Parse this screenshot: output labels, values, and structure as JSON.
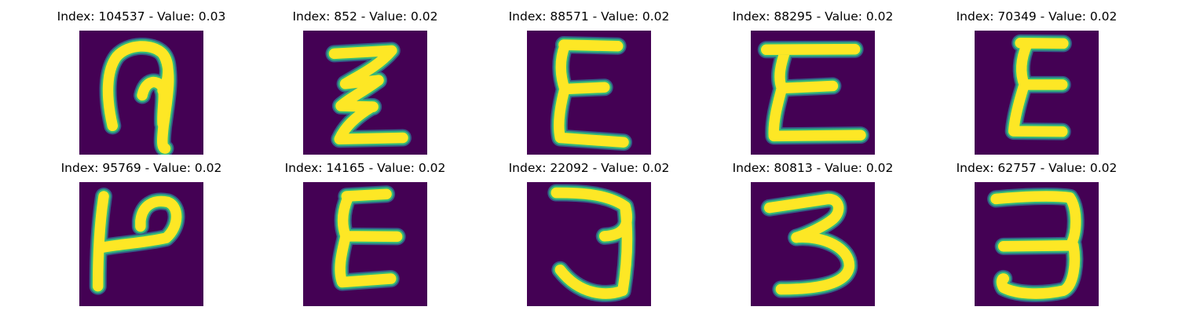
{
  "chart_data": {
    "type": "image-grid",
    "rows": 2,
    "cols": 5,
    "colormap": [
      "#440154",
      "#31688e",
      "#35b779",
      "#fde725"
    ],
    "panels": [
      {
        "index": "104537",
        "value": "0.03",
        "glyph": "loop-hook"
      },
      {
        "index": "852",
        "value": "0.02",
        "glyph": "zigzag-z"
      },
      {
        "index": "88571",
        "value": "0.02",
        "glyph": "epsilon"
      },
      {
        "index": "88295",
        "value": "0.02",
        "glyph": "epsilon-wide"
      },
      {
        "index": "70349",
        "value": "0.02",
        "glyph": "epsilon-narrow"
      },
      {
        "index": "95769",
        "value": "0.02",
        "glyph": "p-rotated"
      },
      {
        "index": "14165",
        "value": "0.02",
        "glyph": "epsilon-thin"
      },
      {
        "index": "22092",
        "value": "0.02",
        "glyph": "three-j"
      },
      {
        "index": "80813",
        "value": "0.02",
        "glyph": "three"
      },
      {
        "index": "62757",
        "value": "0.02",
        "glyph": "three-flat"
      }
    ]
  }
}
